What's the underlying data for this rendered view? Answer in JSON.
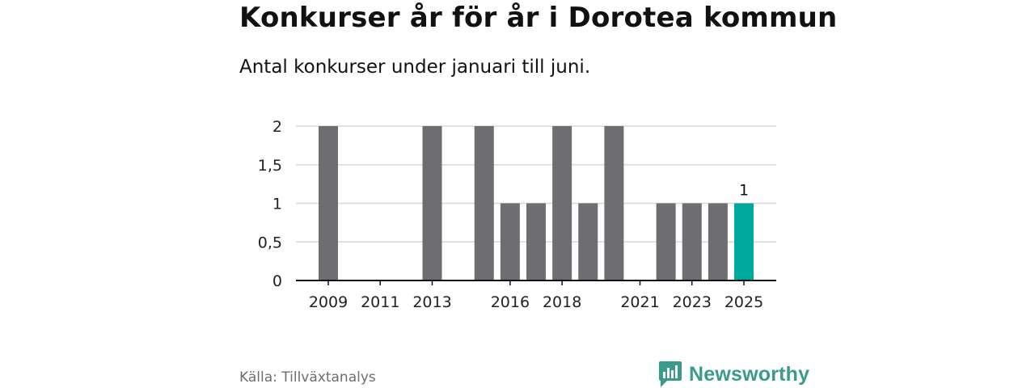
{
  "header": {
    "title": "Konkurser år för år i Dorotea kommun",
    "subtitle": "Antal konkurser under januari till juni."
  },
  "footer": {
    "source": "Källa: Tillväxtanalys",
    "brand": "Newsworthy",
    "brand_color": "#3a9b8c"
  },
  "colors": {
    "bar": "#6d6d72",
    "highlight": "#00a99d",
    "grid": "#d8d8d8",
    "axis": "#111111"
  },
  "chart_data": {
    "type": "bar",
    "title": "Konkurser år för år i Dorotea kommun",
    "subtitle": "Antal konkurser under januari till juni.",
    "categories": [
      "2009",
      "2010",
      "2011",
      "2012",
      "2013",
      "2014",
      "2015",
      "2016",
      "2017",
      "2018",
      "2019",
      "2020",
      "2021",
      "2022",
      "2023",
      "2024",
      "2025"
    ],
    "values": [
      2,
      0,
      0,
      0,
      2,
      0,
      2,
      1,
      1,
      2,
      1,
      2,
      0,
      1,
      1,
      1,
      1
    ],
    "x_tick_labels": [
      "2009",
      "2011",
      "2013",
      "2016",
      "2018",
      "2021",
      "2023",
      "2025"
    ],
    "y_ticks": [
      0,
      0.5,
      1,
      1.5,
      2
    ],
    "y_tick_labels": [
      "0",
      "0,5",
      "1",
      "1,5",
      "2"
    ],
    "ylim": [
      0,
      2
    ],
    "highlight_category": "2025",
    "data_labels": [
      {
        "category": "2025",
        "label": "1"
      }
    ],
    "grid": true,
    "xlabel": "",
    "ylabel": ""
  }
}
